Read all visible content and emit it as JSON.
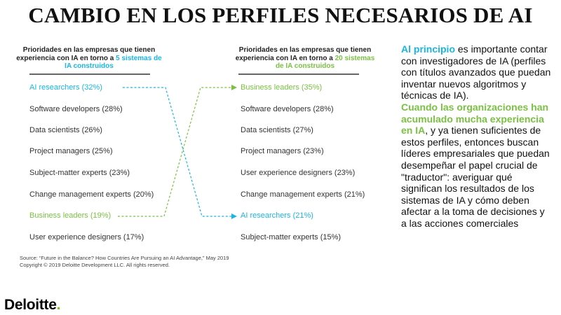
{
  "title": "CAMBIO EN LOS PERFILES NECESARIOS DE AI",
  "left_column": {
    "header_text": "Prioridades en las empresas que tienen experiencia con IA en torno a ",
    "header_highlight": "5 sistemas de IA construidos",
    "items": [
      "AI researchers (32%)",
      "Software developers (28%)",
      "Data scientists (26%)",
      "Project managers (25%)",
      "Subject-matter experts (23%)",
      "Change management experts (20%)",
      "Business leaders (19%)",
      "User experience designers (17%)"
    ]
  },
  "right_column": {
    "header_text": "Prioridades en las empresas que tienen experiencia con IA en torno a ",
    "header_highlight": "20 sistemas de IA construidos",
    "items": [
      "Business leaders (35%)",
      "Software developers (28%)",
      "Data scientists (27%)",
      "Project managers (23%)",
      "User experience designers (23%)",
      "Change management experts (21%)",
      "AI researchers (21%)",
      "Subject-matter experts (15%)"
    ]
  },
  "source": {
    "line1": "Source: “Future in the Balance? How Countries Are Pursuing an AI Advantage,” May 2019",
    "line2": "Copyright © 2019 Deloitte Development LLC. All rights reserved."
  },
  "description": {
    "part1_highlight": "Al principio",
    "part1_text": " es importante contar con investigadores de IA (perfiles con títulos avanzados que puedan inventar nuevos algoritmos y técnicas de IA).",
    "part2_highlight": "Cuando las organizaciones han acumulado mucha experiencia en IA",
    "part2_text": ", y ya tienen suficientes de estos perfiles, entonces buscan líderes empresariales que puedan desempeñar el papel crucial de \"traductor\": averiguar qué significan los resultados de los sistemas de IA y cómo deben afectar a la toma de decisiones y a las acciones comerciales"
  },
  "logo": {
    "name": "Deloitte",
    "dot": "."
  },
  "colors": {
    "blue": "#1ab5e3",
    "green": "#7ac143",
    "logo_green": "#86bc25"
  },
  "connectors": [
    {
      "from": "AI researchers (32%)",
      "to": "AI researchers (21%)",
      "color": "#1ab5e3"
    },
    {
      "from": "Business leaders (19%)",
      "to": "Business leaders (35%)",
      "color": "#7ac143"
    }
  ]
}
